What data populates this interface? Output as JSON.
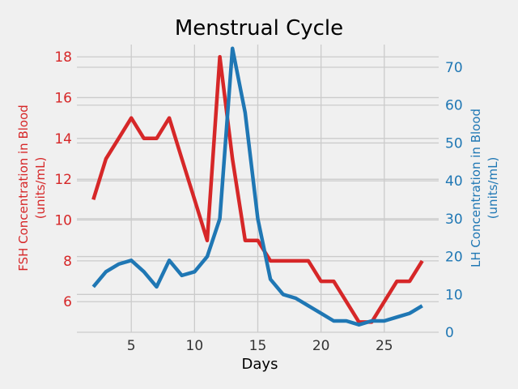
{
  "chart_data": {
    "type": "line",
    "title": "Menstrual Cycle",
    "xlabel": "Days",
    "x_ticks": [
      5,
      10,
      15,
      20,
      25
    ],
    "xlim": [
      0.7,
      29.3
    ],
    "grid": true,
    "left_axis": {
      "label_line1": "FSH Concentration in Blood",
      "label_line2": "(units/mL)",
      "color": "#d62728",
      "ylim": [
        4.5,
        18.6
      ],
      "ticks": [
        6,
        8,
        10,
        12,
        14,
        16,
        18
      ]
    },
    "right_axis": {
      "label_line1": "LH Concentration in Blood",
      "label_line2": "(units/mL)",
      "color": "#1f77b4",
      "ylim": [
        0,
        76
      ],
      "ticks": [
        0,
        10,
        20,
        30,
        40,
        50,
        60,
        70
      ]
    },
    "series": [
      {
        "name": "FSH",
        "axis": "left",
        "color": "#d62728",
        "x": [
          2,
          3,
          4,
          5,
          6,
          7,
          8,
          9,
          10,
          11,
          12,
          13,
          14,
          15,
          16,
          17,
          18,
          19,
          20,
          21,
          22,
          23,
          24,
          25,
          26,
          27,
          28
        ],
        "y": [
          11,
          13,
          14,
          15,
          14,
          14,
          15,
          13,
          11,
          9,
          18,
          13,
          9,
          9,
          8,
          8,
          8,
          8,
          7,
          7,
          6,
          5,
          5,
          6,
          7,
          7,
          8
        ]
      },
      {
        "name": "LH",
        "axis": "right",
        "color": "#1f77b4",
        "x": [
          2,
          3,
          4,
          5,
          6,
          7,
          8,
          9,
          10,
          11,
          12,
          13,
          14,
          15,
          16,
          17,
          18,
          19,
          20,
          21,
          22,
          23,
          24,
          25,
          26,
          27,
          28
        ],
        "y": [
          12,
          16,
          18,
          19,
          16,
          12,
          19,
          15,
          16,
          20,
          30,
          75,
          58,
          30,
          14,
          10,
          9,
          7,
          5,
          3,
          3,
          2,
          3,
          3,
          4,
          5,
          7
        ]
      }
    ]
  }
}
